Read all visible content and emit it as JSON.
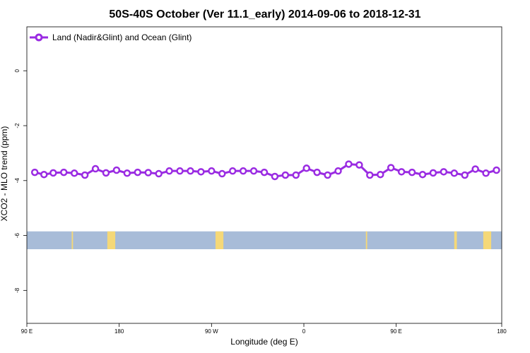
{
  "chart_data": {
    "type": "line",
    "title": "50S-40S October (Ver 11.1_early)   2014-09-06 to 2018-12-31",
    "xlabel": "Longitude (deg E)",
    "ylabel": "XCO2 - MLO trend (ppm)",
    "xlim": [
      90,
      450
    ],
    "ylim": [
      -9.2,
      1.6
    ],
    "x_ticks": [
      {
        "value": 90,
        "label": "90 E"
      },
      {
        "value": 160,
        "label": "180"
      },
      {
        "value": 230,
        "label": "90 W"
      },
      {
        "value": 300,
        "label": "0"
      },
      {
        "value": 370,
        "label": "90 E"
      },
      {
        "value": 450,
        "label": "180"
      }
    ],
    "y_ticks": [
      {
        "value": 0,
        "label": "0"
      },
      {
        "value": -2,
        "label": "-2"
      },
      {
        "value": -4,
        "label": "-4"
      },
      {
        "value": -6,
        "label": "-6"
      },
      {
        "value": -8,
        "label": "-8"
      }
    ],
    "legend": {
      "position": "top-left"
    },
    "series": [
      {
        "name": "Land (Nadir&Glint) and Ocean (Glint)",
        "color": "#9a2be2",
        "x": [
          96,
          103,
          110,
          118,
          126,
          134,
          142,
          150,
          158,
          166,
          174,
          182,
          190,
          198,
          206,
          214,
          222,
          230,
          238,
          246,
          254,
          262,
          270,
          278,
          286,
          294,
          302,
          310,
          318,
          326,
          334,
          342,
          350,
          358,
          366,
          374,
          382,
          390,
          398,
          406,
          414,
          422,
          430,
          438,
          446
        ],
        "y": [
          -3.7,
          -3.78,
          -3.72,
          -3.7,
          -3.73,
          -3.8,
          -3.57,
          -3.72,
          -3.62,
          -3.73,
          -3.7,
          -3.71,
          -3.75,
          -3.65,
          -3.65,
          -3.65,
          -3.68,
          -3.65,
          -3.75,
          -3.65,
          -3.65,
          -3.65,
          -3.7,
          -3.85,
          -3.8,
          -3.8,
          -3.55,
          -3.7,
          -3.8,
          -3.65,
          -3.4,
          -3.43,
          -3.8,
          -3.78,
          -3.53,
          -3.68,
          -3.7,
          -3.78,
          -3.72,
          -3.68,
          -3.73,
          -3.8,
          -3.58,
          -3.73,
          -3.62
        ]
      }
    ],
    "map_strip": {
      "y_range": [
        -6.5,
        -5.85
      ],
      "ocean_color": "#a8bcd8",
      "land_color": "#f5d878",
      "land_x": [
        [
          124,
          125
        ],
        [
          151,
          157
        ],
        [
          233,
          239
        ],
        [
          347,
          348
        ],
        [
          414,
          416
        ],
        [
          436,
          442
        ]
      ]
    }
  }
}
